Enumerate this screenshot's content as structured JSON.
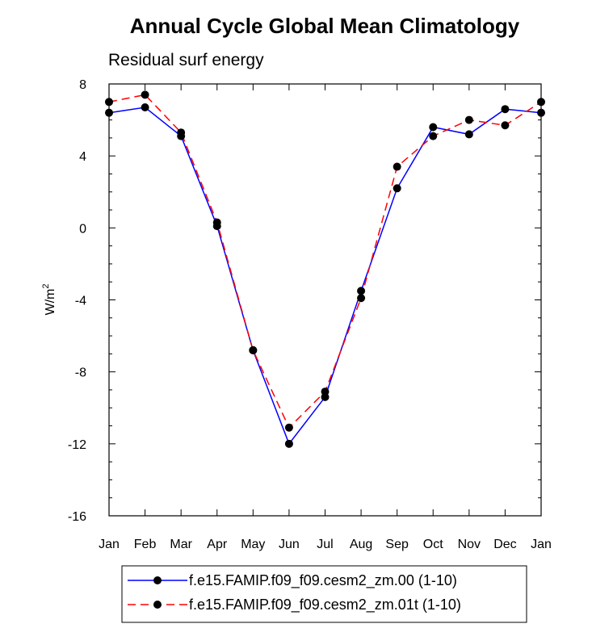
{
  "chart_data": {
    "type": "line",
    "title": "Annual Cycle Global Mean Climatology",
    "subtitle": "Residual surf energy",
    "ylabel": "W/m",
    "ylabel_sup": "2",
    "xlabel": "",
    "categories": [
      "Jan",
      "Feb",
      "Mar",
      "Apr",
      "May",
      "Jun",
      "Jul",
      "Aug",
      "Sep",
      "Oct",
      "Nov",
      "Dec",
      "Jan"
    ],
    "ylim": [
      -16,
      8
    ],
    "yticks": [
      -16,
      -12,
      -8,
      -4,
      0,
      4,
      8
    ],
    "ytick_labels": [
      "-16",
      "-12",
      "-8",
      "-4",
      "0",
      "4",
      "8"
    ],
    "grid": false,
    "legend_position": "bottom",
    "series": [
      {
        "name": "f.e15.FAMIP.f09_f09.cesm2_zm.00 (1-10)",
        "color": "#0000ff",
        "line_style": "solid",
        "marker": "filled-circle",
        "values": [
          6.4,
          6.7,
          5.1,
          0.1,
          -6.8,
          -12.0,
          -9.4,
          -3.5,
          2.2,
          5.6,
          5.2,
          6.6,
          6.4
        ]
      },
      {
        "name": "f.e15.FAMIP.f09_f09.cesm2_zm.01t (1-10)",
        "color": "#ff0000",
        "line_style": "dashed",
        "marker": "filled-circle",
        "values": [
          7.0,
          7.4,
          5.3,
          0.3,
          -6.8,
          -11.1,
          -9.1,
          -3.9,
          3.4,
          5.1,
          6.0,
          5.7,
          7.0
        ]
      }
    ]
  }
}
